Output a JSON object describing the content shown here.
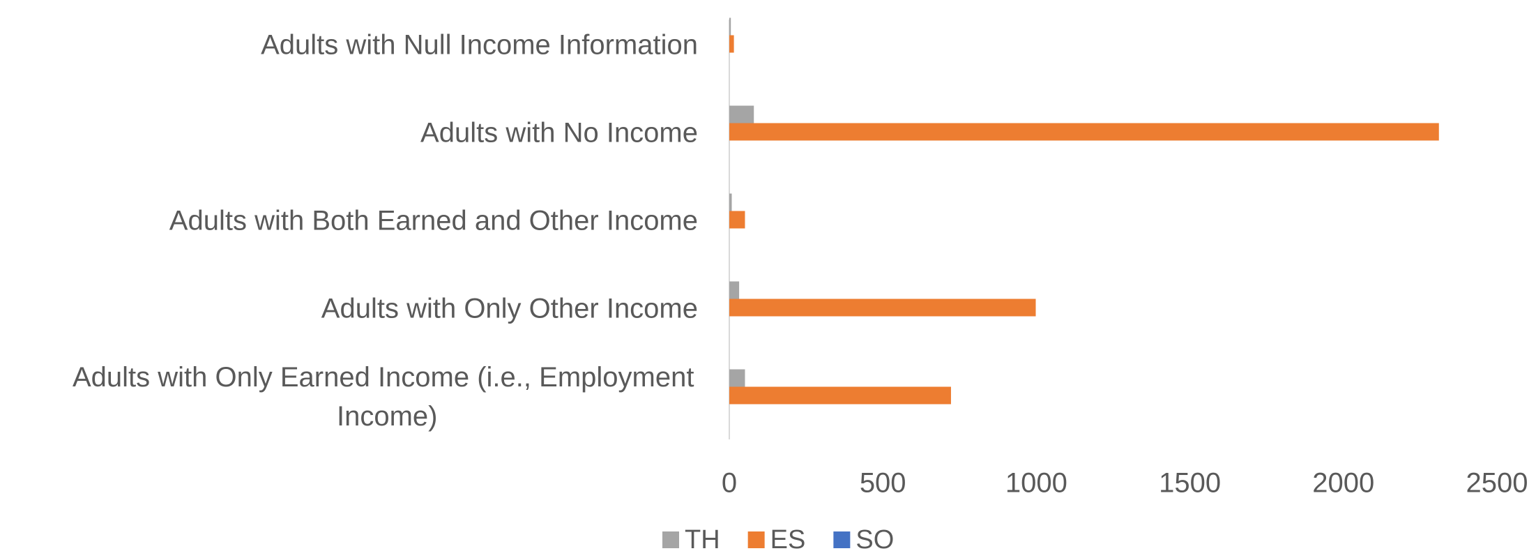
{
  "chart_data": {
    "type": "barh",
    "categories": [
      "Adults with Null Income Information",
      "Adults with No Income",
      "Adults with Both Earned and Other Income",
      "Adults with Only Other Income",
      "Adults with Only Earned Income (i.e., Employment Income)"
    ],
    "series": [
      {
        "name": "TH",
        "color": "#a5a5a5",
        "values": [
          5,
          80,
          8,
          32,
          51
        ]
      },
      {
        "name": "ES",
        "color": "#ed7d31",
        "values": [
          15,
          2311,
          51,
          998,
          722
        ]
      },
      {
        "name": "SO",
        "color": "#4472c4",
        "values": [
          0,
          0,
          0,
          0,
          0
        ]
      }
    ],
    "xlim": [
      0,
      2500
    ],
    "xticks": [
      0,
      500,
      1000,
      1500,
      2000,
      2500
    ],
    "grid": false,
    "legend": "bottom"
  }
}
